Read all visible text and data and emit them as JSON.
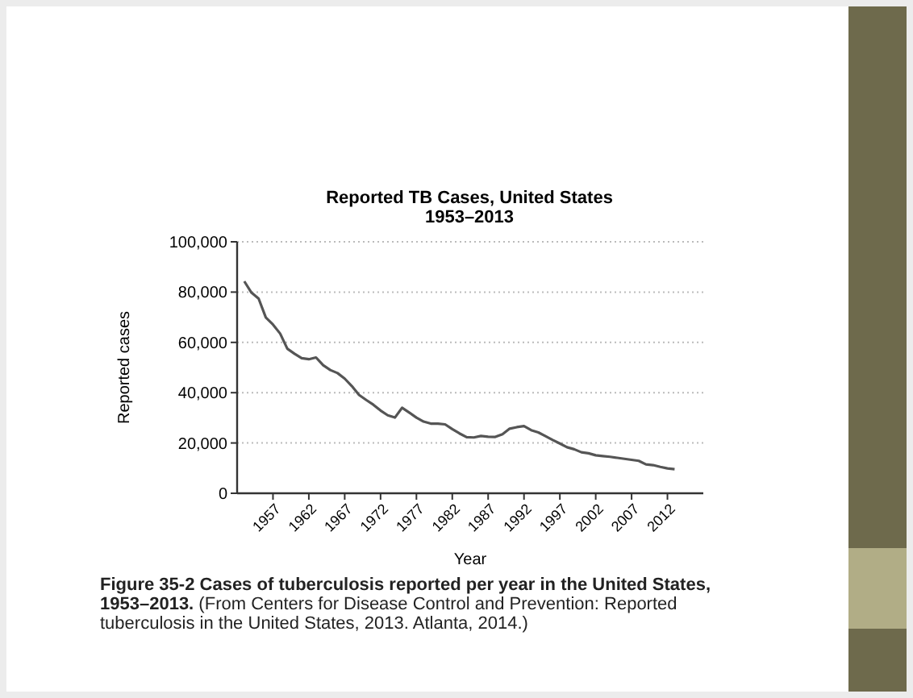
{
  "chart_data": {
    "type": "line",
    "title": "Reported TB Cases, United States",
    "subtitle": "1953–2013",
    "xlabel": "Year",
    "ylabel": "Reported cases",
    "annotations": [
      "Figure 35-2 Cases of tuberculosis reported per year in the United States, 1953–2013.",
      "(From Centers for Disease Control and Prevention: Reported tuberculosis in the United States, 2013. Atlanta, 2014.)"
    ],
    "x": [
      1953,
      1954,
      1955,
      1956,
      1957,
      1958,
      1959,
      1960,
      1961,
      1962,
      1963,
      1964,
      1965,
      1966,
      1967,
      1968,
      1969,
      1970,
      1971,
      1972,
      1973,
      1974,
      1975,
      1976,
      1977,
      1978,
      1979,
      1980,
      1981,
      1982,
      1983,
      1984,
      1985,
      1986,
      1987,
      1988,
      1989,
      1990,
      1991,
      1992,
      1993,
      1994,
      1995,
      1996,
      1997,
      1998,
      1999,
      2000,
      2001,
      2002,
      2003,
      2004,
      2005,
      2006,
      2007,
      2008,
      2009,
      2010,
      2011,
      2012,
      2013
    ],
    "series": [
      {
        "color": "#555555",
        "values": [
          84300,
          79800,
          77400,
          69900,
          67100,
          63500,
          57500,
          55500,
          53700,
          53300,
          54000,
          50900,
          49000,
          47800,
          45600,
          42600,
          39100,
          37100,
          35200,
          32900,
          31000,
          30100,
          34000,
          32100,
          30100,
          28500,
          27700,
          27700,
          27400,
          25500,
          23800,
          22300,
          22200,
          22800,
          22500,
          22400,
          23500,
          25700,
          26300,
          26700,
          25100,
          24200,
          22700,
          21200,
          19800,
          18300,
          17500,
          16300,
          15900,
          15100,
          14800,
          14500,
          14100,
          13700,
          13300,
          12900,
          11500,
          11200,
          10500,
          9900,
          9600
        ]
      }
    ],
    "xlim": [
      1952,
      2017
    ],
    "xticks": [
      1957,
      1962,
      1967,
      1972,
      1977,
      1982,
      1987,
      1992,
      1997,
      2002,
      2007,
      2012
    ],
    "ylim": [
      0,
      100000
    ],
    "yticks": [
      {
        "value": 0,
        "label": "0"
      },
      {
        "value": 20000,
        "label": "20,000"
      },
      {
        "value": 40000,
        "label": "40,000"
      },
      {
        "value": 60000,
        "label": "60,000"
      },
      {
        "value": 80000,
        "label": "80,000"
      },
      {
        "value": 100000,
        "label": "100,000"
      }
    ],
    "grid": "y",
    "marker": "none",
    "line_style": "solid"
  }
}
